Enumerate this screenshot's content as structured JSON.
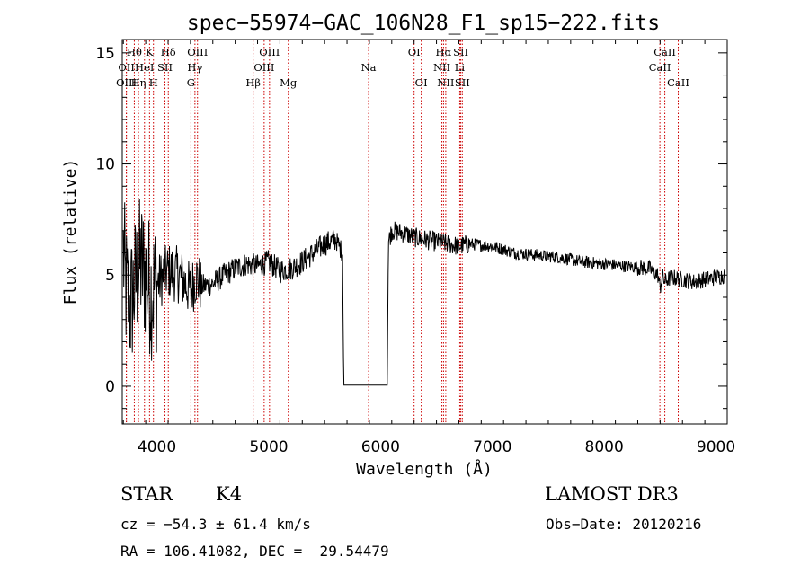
{
  "chart_data": {
    "type": "line",
    "title": "spec−55974−GAC_106N28_F1_sp15−222.fits",
    "xlabel": "Wavelength (Å)",
    "ylabel": "Flux (relative)",
    "xlim": [
      3690,
      9100
    ],
    "ylim": [
      -1.7,
      15.6
    ],
    "xticks": [
      4000,
      5000,
      6000,
      7000,
      8000,
      9000
    ],
    "yticks": [
      0,
      5,
      10,
      15
    ],
    "spectrum_anchors": {
      "x": [
        3700,
        3720,
        3760,
        3800,
        3850,
        3900,
        3950,
        4000,
        4100,
        4200,
        4300,
        4350,
        4400,
        4500,
        4600,
        4700,
        4800,
        4900,
        5000,
        5100,
        5200,
        5300,
        5400,
        5500,
        5600,
        5660,
        5670,
        6060,
        6070,
        6100,
        6200,
        6300,
        6400,
        6500,
        6600,
        6700,
        6800,
        7000,
        7200,
        7400,
        7600,
        7800,
        8000,
        8200,
        8400,
        8480,
        8500,
        8520,
        8540,
        8600,
        8700,
        8800,
        8900,
        9000,
        9080
      ],
      "y": [
        6.0,
        4.5,
        3.5,
        4.5,
        5.5,
        5.0,
        4.3,
        4.6,
        5.2,
        5.0,
        4.3,
        4.9,
        4.5,
        4.6,
        5.0,
        5.3,
        5.5,
        5.4,
        5.6,
        5.2,
        5.3,
        5.6,
        6.0,
        6.4,
        6.6,
        6.0,
        0.05,
        0.05,
        6.5,
        7.0,
        6.9,
        6.7,
        6.6,
        6.5,
        6.4,
        6.3,
        6.4,
        6.3,
        6.0,
        5.9,
        5.8,
        5.6,
        5.5,
        5.4,
        5.3,
        5.0,
        4.4,
        5.0,
        4.7,
        4.9,
        4.8,
        4.7,
        4.8,
        4.9,
        5.0
      ]
    },
    "line_markers": [
      {
        "label": "Hθ",
        "x": 3798,
        "row": 0
      },
      {
        "label": "K",
        "x": 3934,
        "row": 0
      },
      {
        "label": "Hδ",
        "x": 4102,
        "row": 0
      },
      {
        "label": "OIII",
        "x": 4363,
        "row": 0
      },
      {
        "label": "OIII",
        "x": 5007,
        "row": 0
      },
      {
        "label": "OI",
        "x": 6300,
        "row": 0
      },
      {
        "label": "Hα",
        "x": 6563,
        "row": 0
      },
      {
        "label": "SII",
        "x": 6717,
        "row": 0
      },
      {
        "label": "CaII",
        "x": 8542,
        "row": 0
      },
      {
        "label": "OII",
        "x": 3727,
        "row": 1
      },
      {
        "label": "HeI",
        "x": 3889,
        "row": 1
      },
      {
        "label": "SII",
        "x": 4072,
        "row": 1
      },
      {
        "label": "Hγ",
        "x": 4340,
        "row": 1
      },
      {
        "label": "OIII",
        "x": 4959,
        "row": 1
      },
      {
        "label": "Na",
        "x": 5893,
        "row": 1
      },
      {
        "label": "NII",
        "x": 6548,
        "row": 1
      },
      {
        "label": "Li",
        "x": 6708,
        "row": 1
      },
      {
        "label": "CaII",
        "x": 8498,
        "row": 1
      },
      {
        "label": "OIII",
        "x": 3727,
        "row": 2
      },
      {
        "label": "Hη",
        "x": 3835,
        "row": 2
      },
      {
        "label": "H",
        "x": 3969,
        "row": 2
      },
      {
        "label": "G",
        "x": 4304,
        "row": 2
      },
      {
        "label": "Hβ",
        "x": 4861,
        "row": 2
      },
      {
        "label": "Mg",
        "x": 5175,
        "row": 2
      },
      {
        "label": "OI",
        "x": 6364,
        "row": 2
      },
      {
        "label": "NII",
        "x": 6583,
        "row": 2
      },
      {
        "label": "SII",
        "x": 6731,
        "row": 2
      },
      {
        "label": "CaII",
        "x": 8662,
        "row": 2
      }
    ]
  },
  "info": {
    "object_class": "STAR",
    "subclass": "K4",
    "survey": "LAMOST DR3",
    "redshift": "cz = −54.3 ± 61.4 km/s",
    "obs_date": "Obs−Date: 20120216",
    "coords": "RA = 106.41082, DEC =  29.54479"
  }
}
